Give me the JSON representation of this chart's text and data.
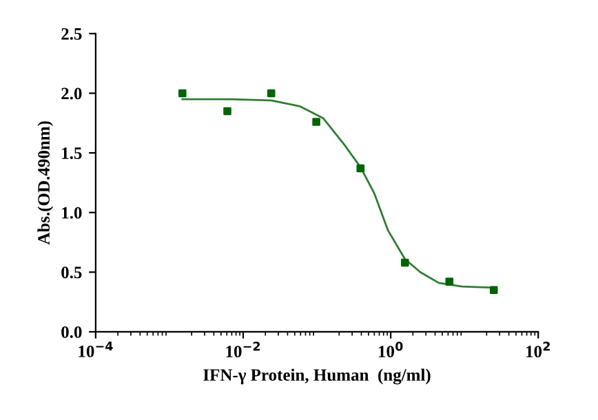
{
  "chart_data": {
    "type": "scatter",
    "xlabel": "IFN-γ Protein, Human  (ng/ml)",
    "ylabel": "Abs.(OD.490nm)",
    "log": "x",
    "grid": false,
    "xlim": [
      0.0001,
      100
    ],
    "xticks": [
      {
        "value": 0.0001,
        "label": "10$^{−4}$"
      },
      {
        "value": 0.01,
        "label": "10$^{−2}$"
      },
      {
        "value": 1,
        "label": "10$^{0}$"
      },
      {
        "value": 100,
        "label": "10$^{2}$"
      }
    ],
    "ylim": [
      0,
      2.5
    ],
    "yticks": [
      {
        "value": 0,
        "label": "0.0"
      },
      {
        "value": 0.5,
        "label": "0.5"
      },
      {
        "value": 1,
        "label": "1.0"
      },
      {
        "value": 1.5,
        "label": "1.5"
      },
      {
        "value": 2,
        "label": "2.0"
      },
      {
        "value": 2.5,
        "label": "2.5"
      }
    ],
    "series": [
      {
        "marker": "square",
        "color": "#006400",
        "x": [
          0.0015,
          0.0061,
          0.024,
          0.098,
          0.39,
          1.56,
          6.25,
          25
        ],
        "values": [
          2.0,
          1.85,
          2.0,
          1.76,
          1.37,
          0.58,
          0.42,
          0.35
        ]
      },
      {
        "type": "line",
        "marker": "none",
        "line_style": "solid",
        "color": "#2e7d32",
        "x": [
          0.0015,
          0.0068,
          0.024,
          0.059,
          0.122,
          0.234,
          0.39,
          0.6,
          0.92,
          1.56,
          2.52,
          4.49,
          9.25,
          25
        ],
        "values": [
          1.95,
          1.95,
          1.94,
          1.89,
          1.79,
          1.57,
          1.38,
          1.16,
          0.85,
          0.61,
          0.5,
          0.41,
          0.38,
          0.37
        ]
      }
    ]
  }
}
